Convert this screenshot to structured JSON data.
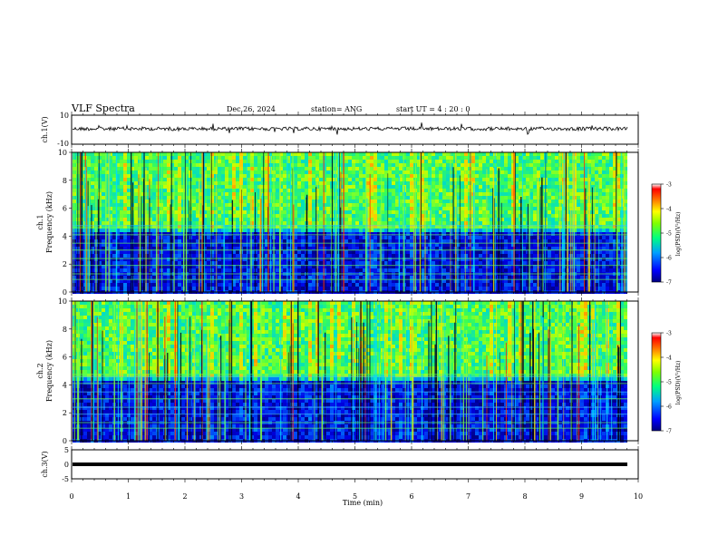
{
  "header": {
    "title": "VLF Spectra",
    "date": "Dec.26, 2024",
    "station": "station= ANG",
    "start": "start  UT =   4 : 20 : 0"
  },
  "chart_data": [
    {
      "type": "line",
      "name": "waveform-ch1",
      "ylabel": "ch.1(V)",
      "ylim": [
        -10,
        10
      ],
      "yticks": [
        "10",
        "-10"
      ],
      "xlim": [
        0,
        10
      ]
    },
    {
      "type": "heatmap",
      "name": "spectrogram-ch1",
      "ylabel_line1": "ch.1",
      "ylabel_line2": "Frequency (kHz)",
      "ylim": [
        0,
        10
      ],
      "yticks": [
        "0",
        "2",
        "4",
        "6",
        "8",
        "10"
      ],
      "xlim": [
        0,
        10
      ],
      "colorbar": {
        "label": "log(PSD)(V²/Hz)",
        "range": [
          -7,
          -3
        ],
        "ticks": [
          "-3",
          "-4",
          "-5",
          "-6",
          "-7"
        ]
      }
    },
    {
      "type": "heatmap",
      "name": "spectrogram-ch2",
      "ylabel_line1": "ch.2",
      "ylabel_line2": "Frequency (kHz)",
      "ylim": [
        0,
        10
      ],
      "yticks": [
        "0",
        "2",
        "4",
        "6",
        "8",
        "10"
      ],
      "xlim": [
        0,
        10
      ],
      "colorbar": {
        "label": "log(PSD)(V²/Hz)",
        "range": [
          -7,
          -3
        ],
        "ticks": [
          "-3",
          "-4",
          "-5",
          "-6",
          "-7"
        ]
      }
    },
    {
      "type": "line",
      "name": "waveform-ch3",
      "ylabel": "ch.3(V)",
      "ylim": [
        -5,
        5
      ],
      "yticks": [
        "5",
        "0",
        "-5"
      ],
      "xlim": [
        0,
        10
      ]
    }
  ],
  "xaxis": {
    "label": "Time (min)",
    "ticks": [
      "0",
      "1",
      "2",
      "3",
      "4",
      "5",
      "6",
      "7",
      "8",
      "9",
      "10"
    ]
  }
}
